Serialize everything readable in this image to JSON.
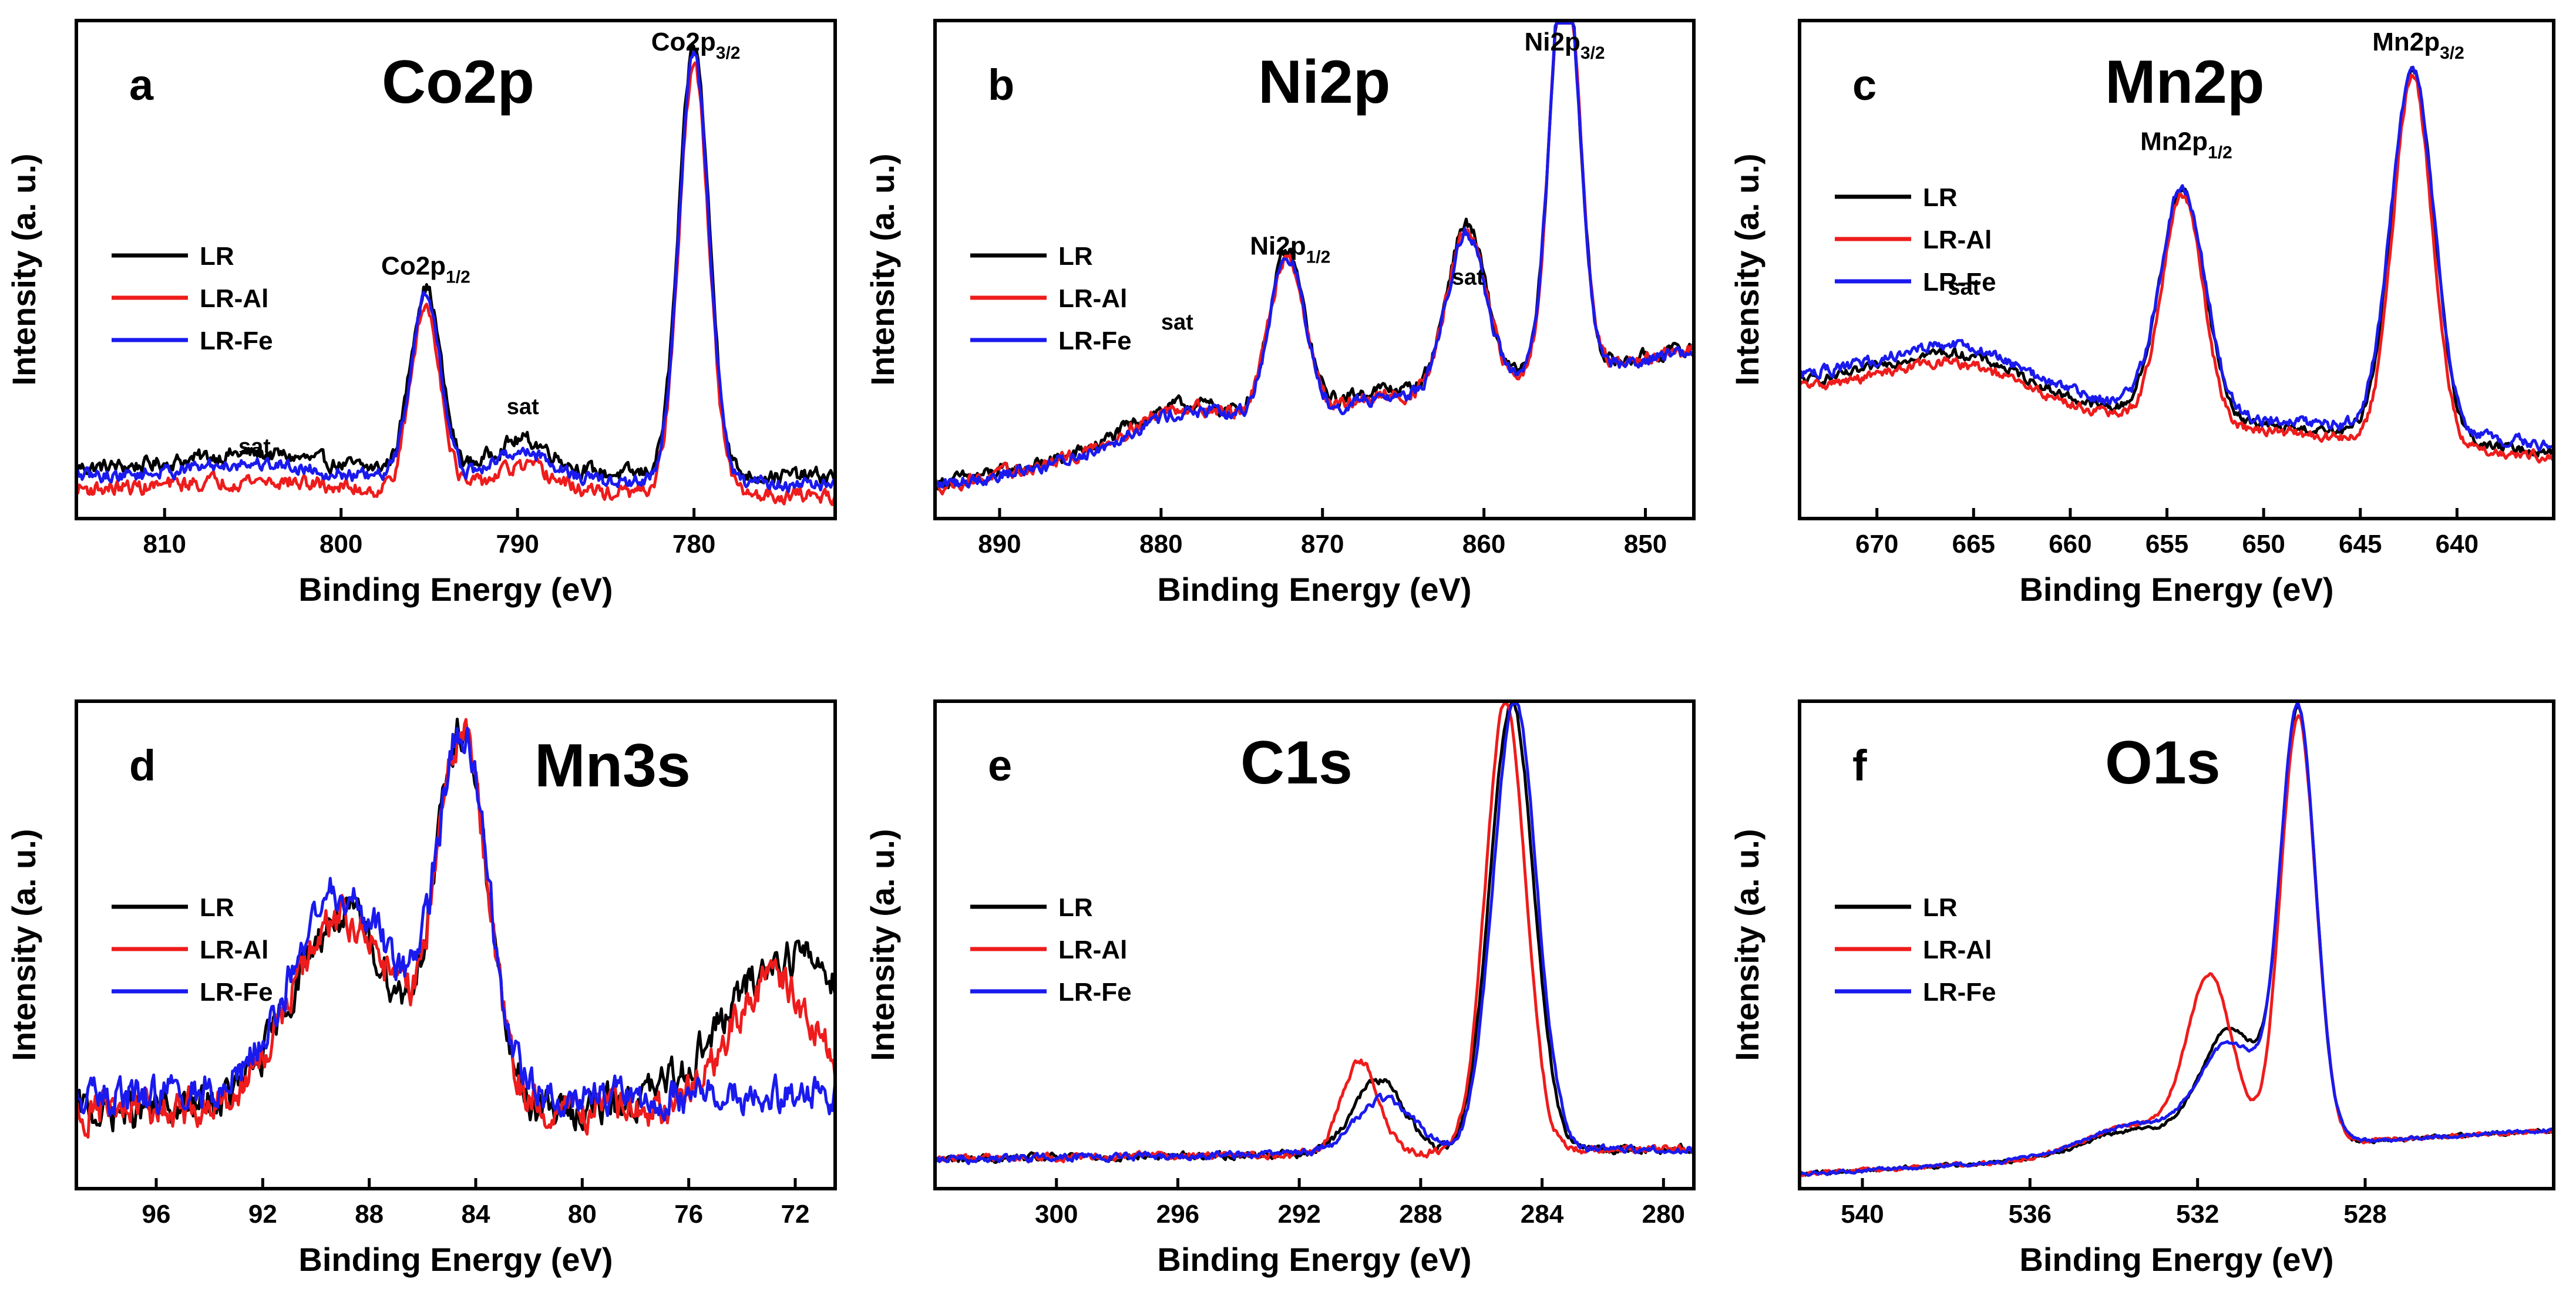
{
  "colors": {
    "LR": "#000000",
    "LR-Al": "#ee1c1c",
    "LR-Fe": "#1a1aee"
  },
  "chart_data": [
    {
      "type": "line",
      "panel": "a",
      "title": "Co2p",
      "xlabel": "Binding Energy (eV)",
      "ylabel": "Intensity (a. u.)",
      "xlim": [
        815,
        772
      ],
      "ylim": [
        0,
        1.0
      ],
      "xticks": [
        810,
        800,
        790,
        780
      ],
      "tick_labels": [
        "810",
        "800",
        "790",
        "780"
      ],
      "legend": [
        "LR",
        "LR-Al",
        "LR-Fe"
      ],
      "annotations": [
        {
          "base": "sat",
          "sub": "",
          "x": 804.9,
          "y": 0.13
        },
        {
          "base": "Co2p",
          "sub": "1/2",
          "x": 795.2,
          "y": 0.49
        },
        {
          "base": "sat",
          "sub": "",
          "x": 789.7,
          "y": 0.21
        },
        {
          "base": "Co2p",
          "sub": "3/2",
          "x": 779.9,
          "y": 0.94
        }
      ],
      "series": [
        {
          "name": "LR",
          "baseline": 0.102,
          "slope": -0.0004,
          "peaks": [
            [
              805,
              0.032,
              3.6
            ],
            [
              795.2,
              0.37,
              0.85
            ],
            [
              789.7,
              0.066,
              1.7
            ],
            [
              780.0,
              0.86,
              0.85
            ]
          ],
          "noise": 0.008
        },
        {
          "name": "LR-Al",
          "baseline": 0.06,
          "slope": -0.0003,
          "peaks": [
            [
              805,
              0.02,
              3.6
            ],
            [
              795.2,
              0.37,
              0.85
            ],
            [
              789.7,
              0.05,
              1.7
            ],
            [
              780.0,
              0.86,
              0.85
            ]
          ],
          "noise": 0.008
        },
        {
          "name": "LR-Fe",
          "baseline": 0.085,
          "slope": -0.0004,
          "peaks": [
            [
              805,
              0.03,
              3.6
            ],
            [
              795.2,
              0.37,
              0.85
            ],
            [
              789.7,
              0.06,
              1.7
            ],
            [
              780.0,
              0.86,
              0.85
            ]
          ],
          "noise": 0.007
        }
      ]
    },
    {
      "type": "line",
      "panel": "b",
      "title": "Ni2p",
      "xlabel": "Binding Energy (eV)",
      "ylabel": "Intensity (a. u.)",
      "xlim": [
        894,
        847
      ],
      "ylim": [
        0,
        1.0
      ],
      "xticks": [
        890,
        880,
        870,
        860,
        850
      ],
      "tick_labels": [
        "890",
        "880",
        "870",
        "860",
        "850"
      ],
      "legend": [
        "LR",
        "LR-Al",
        "LR-Fe"
      ],
      "annotations": [
        {
          "base": "sat",
          "sub": "",
          "x": 879,
          "y": 0.38
        },
        {
          "base": "Ni2p",
          "sub": "1/2",
          "x": 872,
          "y": 0.53
        },
        {
          "base": "sat",
          "sub": "",
          "x": 861,
          "y": 0.47
        },
        {
          "base": "Ni2p",
          "sub": "3/2",
          "x": 855,
          "y": 0.94
        }
      ],
      "series": [
        {
          "name": "LR",
          "baseline": 0.07,
          "slope": 0.0058,
          "peaks": [
            [
              879,
              0.07,
              3.2
            ],
            [
              872.2,
              0.33,
              1.1
            ],
            [
              867,
              0.03,
              2.2
            ],
            [
              861.1,
              0.33,
              1.2
            ],
            [
              855.0,
              0.84,
              0.9
            ]
          ],
          "noise": 0.007
        },
        {
          "name": "LR-Al",
          "baseline": 0.065,
          "slope": 0.0058,
          "peaks": [
            [
              879,
              0.07,
              3.2
            ],
            [
              872.2,
              0.33,
              1.1
            ],
            [
              867,
              0.02,
              2.2
            ],
            [
              861.1,
              0.32,
              1.2
            ],
            [
              855.0,
              0.86,
              0.9
            ]
          ],
          "noise": 0.007
        },
        {
          "name": "LR-Fe",
          "baseline": 0.065,
          "slope": 0.0058,
          "peaks": [
            [
              879,
              0.06,
              3.2
            ],
            [
              872.2,
              0.33,
              1.1
            ],
            [
              867,
              0.02,
              2.2
            ],
            [
              861.1,
              0.32,
              1.2
            ],
            [
              855.0,
              0.85,
              0.9
            ]
          ],
          "noise": 0.007
        }
      ]
    },
    {
      "type": "line",
      "panel": "c",
      "title": "Mn2p",
      "xlabel": "Binding Energy (eV)",
      "ylabel": "Intensity (a. u.)",
      "xlim": [
        674,
        635
      ],
      "ylim": [
        0,
        1.0
      ],
      "xticks": [
        670,
        665,
        660,
        655,
        650,
        645,
        640
      ],
      "tick_labels": [
        "670",
        "665",
        "660",
        "655",
        "650",
        "645",
        "640"
      ],
      "legend": [
        "LR",
        "LR-Al",
        "LR-Fe"
      ],
      "annotations": [
        {
          "base": "sat",
          "sub": "",
          "x": 665.5,
          "y": 0.45
        },
        {
          "base": "Mn2p",
          "sub": "1/2",
          "x": 654,
          "y": 0.74
        },
        {
          "base": "Mn2p",
          "sub": "3/2",
          "x": 642,
          "y": 0.94
        }
      ],
      "series": [
        {
          "name": "LR",
          "baseline": 0.27,
          "slope": -0.0035,
          "peaks": [
            [
              666,
              0.09,
              3.6
            ],
            [
              654.2,
              0.46,
              1.15
            ],
            [
              642.3,
              0.74,
              1.1
            ]
          ],
          "noise": 0.005
        },
        {
          "name": "LR-Al",
          "baseline": 0.26,
          "slope": -0.0035,
          "peaks": [
            [
              666,
              0.08,
              3.6
            ],
            [
              654.2,
              0.46,
              1.05
            ],
            [
              642.3,
              0.74,
              1.0
            ]
          ],
          "noise": 0.005
        },
        {
          "name": "LR-Fe",
          "baseline": 0.285,
          "slope": -0.0035,
          "peaks": [
            [
              666,
              0.09,
              3.6
            ],
            [
              654.2,
              0.45,
              1.15
            ],
            [
              642.3,
              0.73,
              1.1
            ]
          ],
          "noise": 0.006
        }
      ]
    },
    {
      "type": "line",
      "panel": "d",
      "title": "Mn3s",
      "xlabel": "Binding Energy (eV)",
      "ylabel": "Intensity (a. u.)",
      "xlim": [
        99,
        70.5
      ],
      "ylim": [
        0,
        1.0
      ],
      "xticks": [
        96,
        92,
        88,
        84,
        80,
        76,
        72
      ],
      "tick_labels": [
        "96",
        "92",
        "88",
        "84",
        "80",
        "76",
        "72"
      ],
      "legend": [
        "LR",
        "LR-Al",
        "LR-Fe"
      ],
      "annotations": [],
      "series": [
        {
          "name": "LR",
          "baseline": 0.16,
          "slope": 0.0,
          "peaks": [
            [
              89.0,
              0.4,
              1.9
            ],
            [
              84.5,
              0.76,
              0.95
            ],
            [
              72,
              0.32,
              2.6
            ]
          ],
          "noise": 0.02
        },
        {
          "name": "LR-Al",
          "baseline": 0.16,
          "slope": 0.0,
          "peaks": [
            [
              89.0,
              0.4,
              1.9
            ],
            [
              84.5,
              0.75,
              0.95
            ],
            [
              72.8,
              0.27,
              1.6
            ]
          ],
          "noise": 0.02
        },
        {
          "name": "LR-Fe",
          "baseline": 0.19,
          "slope": 0.0,
          "peaks": [
            [
              89.0,
              0.42,
              1.9
            ],
            [
              84.5,
              0.73,
              0.95
            ]
          ],
          "noise": 0.02
        }
      ]
    },
    {
      "type": "line",
      "panel": "e",
      "title": "C1s",
      "xlabel": "Binding Energy (eV)",
      "ylabel": "Intensity (a. u.)",
      "xlim": [
        304,
        279
      ],
      "ylim": [
        0,
        1.0
      ],
      "xticks": [
        300,
        296,
        292,
        288,
        284,
        280
      ],
      "tick_labels": [
        "300",
        "296",
        "292",
        "288",
        "284",
        "280"
      ],
      "legend": [
        "LR",
        "LR-Al",
        "LR-Fe"
      ],
      "annotations": [],
      "series": [
        {
          "name": "LR",
          "baseline": 0.06,
          "slope": 0.0009,
          "peaks": [
            [
              289.4,
              0.15,
              0.85
            ],
            [
              285.0,
              0.92,
              0.72
            ]
          ],
          "noise": 0.004
        },
        {
          "name": "LR-Al",
          "baseline": 0.06,
          "slope": 0.0009,
          "peaks": [
            [
              290.0,
              0.19,
              0.6
            ],
            [
              285.2,
              0.92,
              0.66
            ]
          ],
          "noise": 0.004
        },
        {
          "name": "LR-Fe",
          "baseline": 0.06,
          "slope": 0.0009,
          "peaks": [
            [
              289.2,
              0.11,
              0.95
            ],
            [
              284.9,
              0.92,
              0.72
            ]
          ],
          "noise": 0.004
        }
      ]
    },
    {
      "type": "line",
      "panel": "f",
      "title": "O1s",
      "xlabel": "Binding Energy (eV)",
      "ylabel": "Intensity (a. u.)",
      "xlim": [
        541.5,
        523.5
      ],
      "ylim": [
        0,
        1.0
      ],
      "xticks": [
        540,
        536,
        532,
        528
      ],
      "tick_labels": [
        "540",
        "536",
        "532",
        "528"
      ],
      "legend": [
        "LR",
        "LR-Al",
        "LR-Fe"
      ],
      "annotations": [],
      "series": [
        {
          "name": "LR",
          "baseline": 0.03,
          "slope": 0.005,
          "peaks": [
            [
              531.2,
              0.24,
              0.7
            ],
            [
              533.5,
              0.05,
              1.2
            ],
            [
              529.6,
              0.88,
              0.42
            ]
          ],
          "noise": 0.002
        },
        {
          "name": "LR-Al",
          "baseline": 0.03,
          "slope": 0.005,
          "peaks": [
            [
              531.7,
              0.34,
              0.55
            ],
            [
              533.5,
              0.06,
              1.2
            ],
            [
              529.6,
              0.88,
              0.42
            ]
          ],
          "noise": 0.002
        },
        {
          "name": "LR-Fe",
          "baseline": 0.03,
          "slope": 0.005,
          "peaks": [
            [
              531.2,
              0.21,
              0.75
            ],
            [
              533.5,
              0.06,
              1.2
            ],
            [
              529.6,
              0.88,
              0.42
            ]
          ],
          "noise": 0.002
        }
      ]
    }
  ]
}
